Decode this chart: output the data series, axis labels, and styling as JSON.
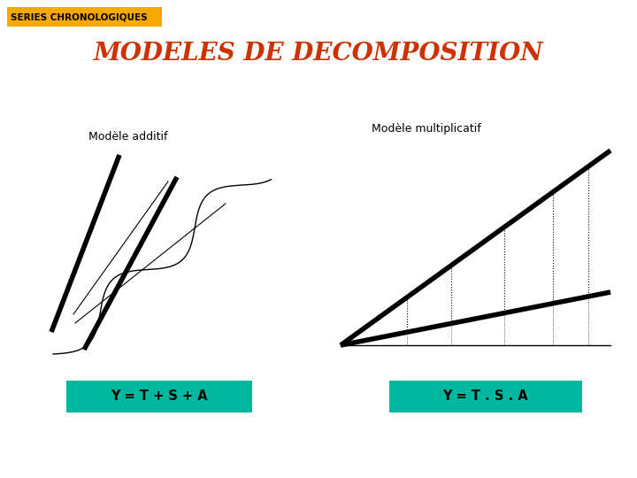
{
  "background_color": "#ffffff",
  "header_bg": "#f5a800",
  "header_text": "SERIES CHRONOLOGIQUES",
  "header_text_color": "#000000",
  "title": "MODELES DE DECOMPOSITION",
  "title_color": "#cc3300",
  "label_additif": "Modèle additif",
  "label_multiplicatif": "Modèle multiplicatif",
  "formula_additif": "Y = T + S + A",
  "formula_multiplicatif": "Y = T . S . A",
  "formula_bg": "#00b8a0",
  "formula_text_color": "#000000"
}
